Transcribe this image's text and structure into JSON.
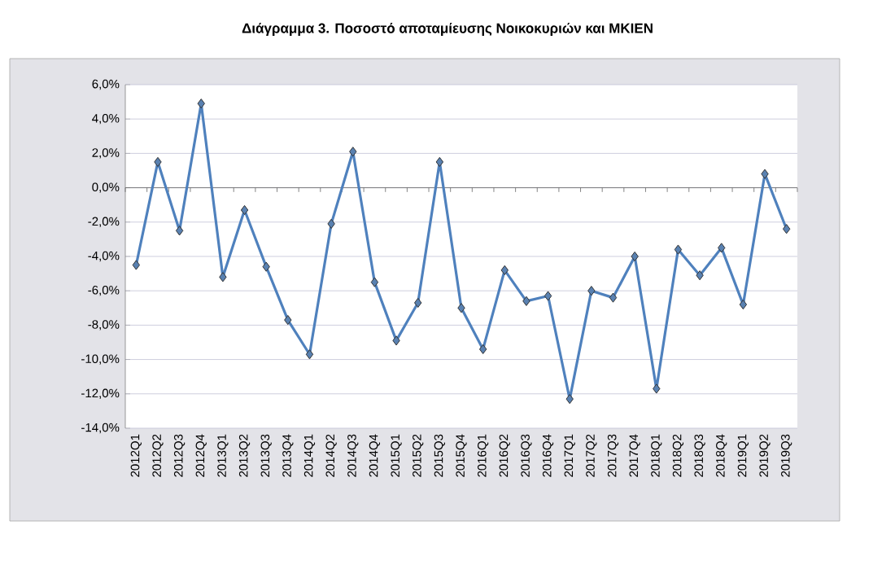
{
  "chart_data": {
    "type": "line",
    "title": "Διάγραμμα 3. Ποσοστό αποταμίευσης Νοικοκυριών και ΜΚΙΕΝ",
    "categories": [
      "2012Q1",
      "2012Q2",
      "2012Q3",
      "2012Q4",
      "2013Q1",
      "2013Q2",
      "2013Q3",
      "2013Q4",
      "2014Q1",
      "2014Q2",
      "2014Q3",
      "2014Q4",
      "2015Q1",
      "2015Q2",
      "2015Q3",
      "2015Q4",
      "2016Q1",
      "2016Q2",
      "2016Q3",
      "2016Q4",
      "2017Q1",
      "2017Q2",
      "2017Q3",
      "2017Q4",
      "2018Q1",
      "2018Q2",
      "2018Q3",
      "2018Q4",
      "2019Q1",
      "2019Q2",
      "2019Q3"
    ],
    "series": [
      {
        "color": "#4f81bd",
        "values": [
          -4.5,
          1.5,
          -2.5,
          4.9,
          -5.2,
          -1.3,
          -4.6,
          -7.7,
          -9.7,
          -2.1,
          2.1,
          -5.5,
          -8.9,
          -6.7,
          1.5,
          -7.0,
          -9.4,
          -4.8,
          -6.6,
          -6.3,
          -12.3,
          -6.0,
          -6.4,
          -4.0,
          -11.7,
          -3.6,
          -5.1,
          -3.5,
          -6.8,
          0.8,
          -2.4
        ]
      }
    ],
    "ylim": [
      -14,
      6
    ],
    "yticks": [
      {
        "value": -14,
        "label": "-14,0%"
      },
      {
        "value": -12,
        "label": "-12,0%"
      },
      {
        "value": -10,
        "label": "-10,0%"
      },
      {
        "value": -8,
        "label": "-8,0%"
      },
      {
        "value": -6,
        "label": "-6,0%"
      },
      {
        "value": -4,
        "label": "-4,0%"
      },
      {
        "value": -2,
        "label": "-2,0%"
      },
      {
        "value": 0,
        "label": "0,0%"
      },
      {
        "value": 2,
        "label": "2,0%"
      },
      {
        "value": 4,
        "label": "4,0%"
      },
      {
        "value": 6,
        "label": "6,0%"
      }
    ],
    "grid": "y",
    "marker": "diamond",
    "line_style": "solid",
    "legend": false
  }
}
